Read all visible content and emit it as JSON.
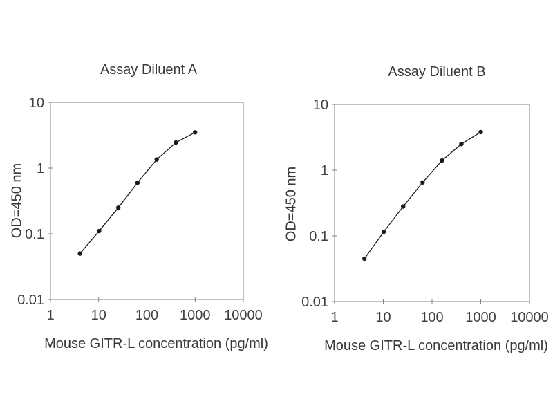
{
  "page": {
    "background_color": "#ffffff",
    "axis_color": "#808080",
    "curve_color": "#1a1a1a",
    "text_color": "#383838"
  },
  "chart_data": [
    {
      "type": "line",
      "title": "Assay Diluent A",
      "xlabel": "Mouse GITR-L concentration (pg/ml)",
      "ylabel": "OD=450 nm",
      "x_scale": "log",
      "y_scale": "log",
      "xlim": [
        1,
        10000
      ],
      "ylim": [
        0.01,
        10
      ],
      "x_tick_labels": [
        "1",
        "10",
        "100",
        "1000",
        "10000"
      ],
      "y_tick_labels": [
        "10",
        "1",
        "0.1",
        "0.01"
      ],
      "x": [
        4.1,
        10.2,
        25.6,
        64,
        160,
        400,
        1000
      ],
      "y": [
        0.05,
        0.11,
        0.25,
        0.6,
        1.35,
        2.45,
        3.5
      ],
      "grid": false,
      "legend": null,
      "marker": "circle",
      "line_color": "#1a1a1a",
      "axis_color": "#808080",
      "tick_label_color": "#404040"
    },
    {
      "type": "line",
      "title": "Assay Diluent B",
      "xlabel": "Mouse GITR-L concentration (pg/ml)",
      "ylabel": "OD=450 nm",
      "x_scale": "log",
      "y_scale": "log",
      "xlim": [
        1,
        10000
      ],
      "ylim": [
        0.01,
        10
      ],
      "x_tick_labels": [
        "1",
        "10",
        "100",
        "1000",
        "10000"
      ],
      "y_tick_labels": [
        "10",
        "1",
        "0.1",
        "0.01"
      ],
      "x": [
        4.1,
        10.2,
        25.6,
        64,
        160,
        400,
        1000
      ],
      "y": [
        0.045,
        0.115,
        0.28,
        0.65,
        1.4,
        2.5,
        3.8
      ],
      "grid": false,
      "legend": null,
      "marker": "circle",
      "line_color": "#1a1a1a",
      "axis_color": "#808080",
      "tick_label_color": "#404040"
    }
  ]
}
